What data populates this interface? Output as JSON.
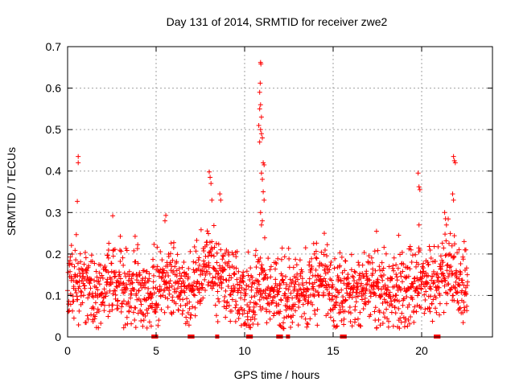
{
  "chart_data": {
    "type": "scatter",
    "title": "Day 131 of 2014, SRMTID for receiver zwe2",
    "xlabel": "GPS time / hours",
    "ylabel": "SRMTID / TECUs",
    "xlim": [
      0,
      24
    ],
    "ylim": [
      0,
      0.7
    ],
    "x_ticks": [
      0,
      5,
      10,
      15,
      20
    ],
    "y_ticks": [
      0,
      0.1,
      0.2,
      0.3,
      0.4,
      0.5,
      0.6,
      0.7
    ],
    "x_tick_labels": [
      "0",
      "5",
      "10",
      "15",
      "20"
    ],
    "y_tick_labels": [
      "0",
      "0.1",
      "0.2",
      "0.3",
      "0.4",
      "0.5",
      "0.6",
      "0.7"
    ],
    "grid": true,
    "marker": "+",
    "color": "#ff0000",
    "data_end_hour": 22.6,
    "baseline_level": [
      [
        0.0,
        0.13
      ],
      [
        0.5,
        0.14
      ],
      [
        1.0,
        0.13
      ],
      [
        1.5,
        0.1
      ],
      [
        2.0,
        0.13
      ],
      [
        2.5,
        0.15
      ],
      [
        3.0,
        0.14
      ],
      [
        3.5,
        0.11
      ],
      [
        4.0,
        0.12
      ],
      [
        4.5,
        0.1
      ],
      [
        5.0,
        0.11
      ],
      [
        5.5,
        0.15
      ],
      [
        6.0,
        0.13
      ],
      [
        6.5,
        0.12
      ],
      [
        7.0,
        0.11
      ],
      [
        7.5,
        0.14
      ],
      [
        8.0,
        0.2
      ],
      [
        8.5,
        0.15
      ],
      [
        9.0,
        0.14
      ],
      [
        9.5,
        0.12
      ],
      [
        10.0,
        0.09
      ],
      [
        10.5,
        0.11
      ],
      [
        11.0,
        0.13
      ],
      [
        11.5,
        0.12
      ],
      [
        12.0,
        0.1
      ],
      [
        12.5,
        0.1
      ],
      [
        13.0,
        0.12
      ],
      [
        13.5,
        0.12
      ],
      [
        14.0,
        0.13
      ],
      [
        14.5,
        0.15
      ],
      [
        15.0,
        0.08
      ],
      [
        15.5,
        0.09
      ],
      [
        16.0,
        0.12
      ],
      [
        16.5,
        0.11
      ],
      [
        17.0,
        0.13
      ],
      [
        17.5,
        0.12
      ],
      [
        18.0,
        0.11
      ],
      [
        18.5,
        0.12
      ],
      [
        19.0,
        0.1
      ],
      [
        19.5,
        0.13
      ],
      [
        20.0,
        0.14
      ],
      [
        20.5,
        0.12
      ],
      [
        21.0,
        0.13
      ],
      [
        21.5,
        0.18
      ],
      [
        22.0,
        0.14
      ],
      [
        22.6,
        0.12
      ]
    ],
    "peak_points": [
      {
        "x": 0.6,
        "y": 0.435
      },
      {
        "x": 0.6,
        "y": 0.42
      },
      {
        "x": 0.55,
        "y": 0.327
      },
      {
        "x": 2.55,
        "y": 0.292
      },
      {
        "x": 5.55,
        "y": 0.293
      },
      {
        "x": 5.5,
        "y": 0.28
      },
      {
        "x": 8.0,
        "y": 0.398
      },
      {
        "x": 8.05,
        "y": 0.385
      },
      {
        "x": 8.1,
        "y": 0.37
      },
      {
        "x": 8.6,
        "y": 0.345
      },
      {
        "x": 8.65,
        "y": 0.33
      },
      {
        "x": 8.15,
        "y": 0.33
      },
      {
        "x": 10.9,
        "y": 0.662
      },
      {
        "x": 10.92,
        "y": 0.658
      },
      {
        "x": 10.88,
        "y": 0.612
      },
      {
        "x": 10.85,
        "y": 0.59
      },
      {
        "x": 10.9,
        "y": 0.56
      },
      {
        "x": 10.85,
        "y": 0.55
      },
      {
        "x": 10.95,
        "y": 0.53
      },
      {
        "x": 10.8,
        "y": 0.51
      },
      {
        "x": 10.9,
        "y": 0.5
      },
      {
        "x": 10.95,
        "y": 0.49
      },
      {
        "x": 11.0,
        "y": 0.48
      },
      {
        "x": 10.85,
        "y": 0.47
      },
      {
        "x": 11.05,
        "y": 0.42
      },
      {
        "x": 11.1,
        "y": 0.415
      },
      {
        "x": 10.95,
        "y": 0.395
      },
      {
        "x": 11.0,
        "y": 0.38
      },
      {
        "x": 11.05,
        "y": 0.35
      },
      {
        "x": 11.1,
        "y": 0.33
      },
      {
        "x": 10.9,
        "y": 0.3
      },
      {
        "x": 11.0,
        "y": 0.28
      },
      {
        "x": 10.95,
        "y": 0.27
      },
      {
        "x": 14.5,
        "y": 0.25
      },
      {
        "x": 17.45,
        "y": 0.255
      },
      {
        "x": 18.7,
        "y": 0.245
      },
      {
        "x": 19.8,
        "y": 0.395
      },
      {
        "x": 19.85,
        "y": 0.362
      },
      {
        "x": 19.9,
        "y": 0.355
      },
      {
        "x": 19.85,
        "y": 0.27
      },
      {
        "x": 21.8,
        "y": 0.435
      },
      {
        "x": 21.85,
        "y": 0.425
      },
      {
        "x": 21.9,
        "y": 0.42
      },
      {
        "x": 21.75,
        "y": 0.345
      },
      {
        "x": 21.8,
        "y": 0.33
      },
      {
        "x": 21.3,
        "y": 0.3
      },
      {
        "x": 21.35,
        "y": 0.285
      },
      {
        "x": 21.4,
        "y": 0.27
      },
      {
        "x": 22.4,
        "y": 0.23
      },
      {
        "x": 22.5,
        "y": 0.21
      }
    ],
    "zero_line_points": [
      {
        "x": 4.85,
        "y": 0.0
      },
      {
        "x": 5.0,
        "y": 0.0
      },
      {
        "x": 6.9,
        "y": 0.0
      },
      {
        "x": 7.05,
        "y": 0.0
      },
      {
        "x": 8.45,
        "y": 0.0
      },
      {
        "x": 10.2,
        "y": 0.0
      },
      {
        "x": 10.35,
        "y": 0.0
      },
      {
        "x": 11.9,
        "y": 0.0
      },
      {
        "x": 12.05,
        "y": 0.0
      },
      {
        "x": 12.45,
        "y": 0.0
      },
      {
        "x": 15.5,
        "y": 0.0
      },
      {
        "x": 15.65,
        "y": 0.0
      },
      {
        "x": 20.8,
        "y": 0.0
      },
      {
        "x": 20.95,
        "y": 0.0
      }
    ]
  }
}
